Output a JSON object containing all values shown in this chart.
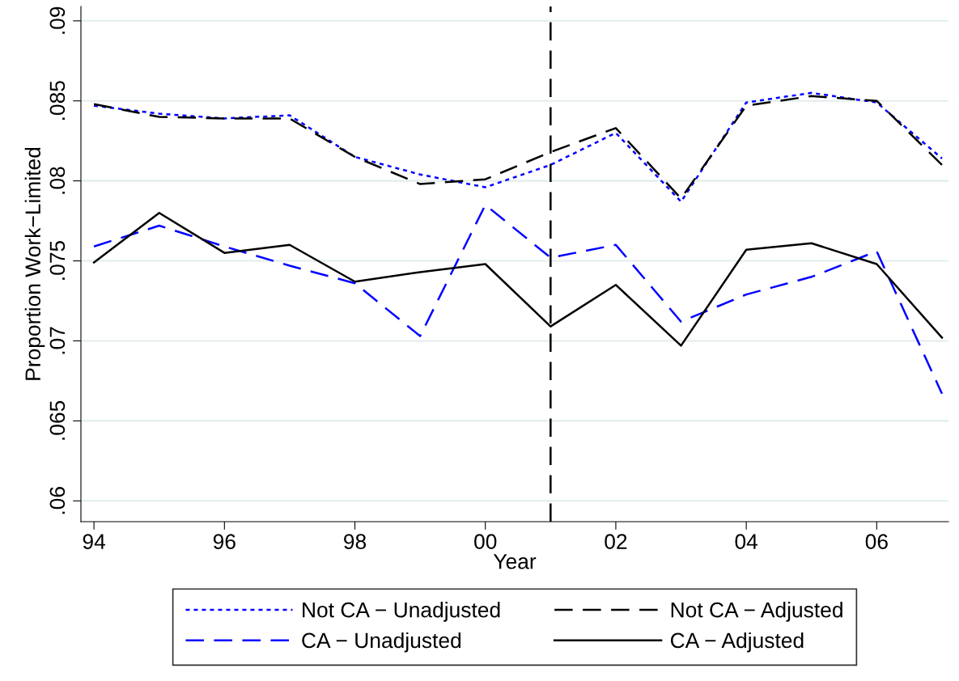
{
  "chart_data": {
    "type": "line",
    "xlabel": "Year",
    "ylabel": "Proportion Work−Limited",
    "x": [
      1994,
      1995,
      1996,
      1997,
      1998,
      1999,
      2000,
      2001,
      2002,
      2003,
      2004,
      2005,
      2006,
      2007
    ],
    "series": [
      {
        "name": "Not CA − Unadjusted",
        "color": "#0000ff",
        "line_style": "dotted",
        "values": [
          0.0847,
          0.0842,
          0.0839,
          0.0841,
          0.0815,
          0.0804,
          0.0796,
          0.081,
          0.083,
          0.0787,
          0.0849,
          0.0855,
          0.0849,
          0.0814
        ]
      },
      {
        "name": "CA − Unadjusted",
        "color": "#0000ff",
        "line_style": "dashed",
        "values": [
          0.0759,
          0.0772,
          0.0759,
          0.0747,
          0.0736,
          0.0703,
          0.0785,
          0.0752,
          0.076,
          0.0712,
          0.0729,
          0.074,
          0.0756,
          0.0667
        ]
      },
      {
        "name": "Not CA − Adjusted",
        "color": "#000000",
        "line_style": "dashed",
        "values": [
          0.0848,
          0.084,
          0.0839,
          0.0839,
          0.0815,
          0.0798,
          0.0801,
          0.0818,
          0.0833,
          0.0789,
          0.0847,
          0.0853,
          0.085,
          0.081
        ]
      },
      {
        "name": "CA − Adjusted",
        "color": "#000000",
        "line_style": "solid",
        "values": [
          0.0749,
          0.078,
          0.0755,
          0.076,
          0.0737,
          0.0743,
          0.0748,
          0.0709,
          0.0735,
          0.0697,
          0.0757,
          0.0761,
          0.0748,
          0.0702
        ]
      }
    ],
    "xlim": [
      1993.8,
      2007.1
    ],
    "ylim": [
      0.0587,
      0.0909
    ],
    "xticks": [
      {
        "value": 1994,
        "label": "94"
      },
      {
        "value": 1996,
        "label": "96"
      },
      {
        "value": 1998,
        "label": "98"
      },
      {
        "value": 2000,
        "label": "00"
      },
      {
        "value": 2002,
        "label": "02"
      },
      {
        "value": 2004,
        "label": "04"
      },
      {
        "value": 2006,
        "label": "06"
      }
    ],
    "yticks": [
      {
        "value": 0.06,
        "label": ".06"
      },
      {
        "value": 0.065,
        "label": ".065"
      },
      {
        "value": 0.07,
        "label": ".07"
      },
      {
        "value": 0.075,
        "label": ".075"
      },
      {
        "value": 0.08,
        "label": ".08"
      },
      {
        "value": 0.085,
        "label": ".085"
      },
      {
        "value": 0.09,
        "label": ".09"
      }
    ],
    "ref_lines": [
      {
        "axis": "x",
        "value": 2001,
        "color": "#000000",
        "line_style": "dashed"
      }
    ],
    "grid": "y",
    "legend": "bottom",
    "marker": "none"
  }
}
